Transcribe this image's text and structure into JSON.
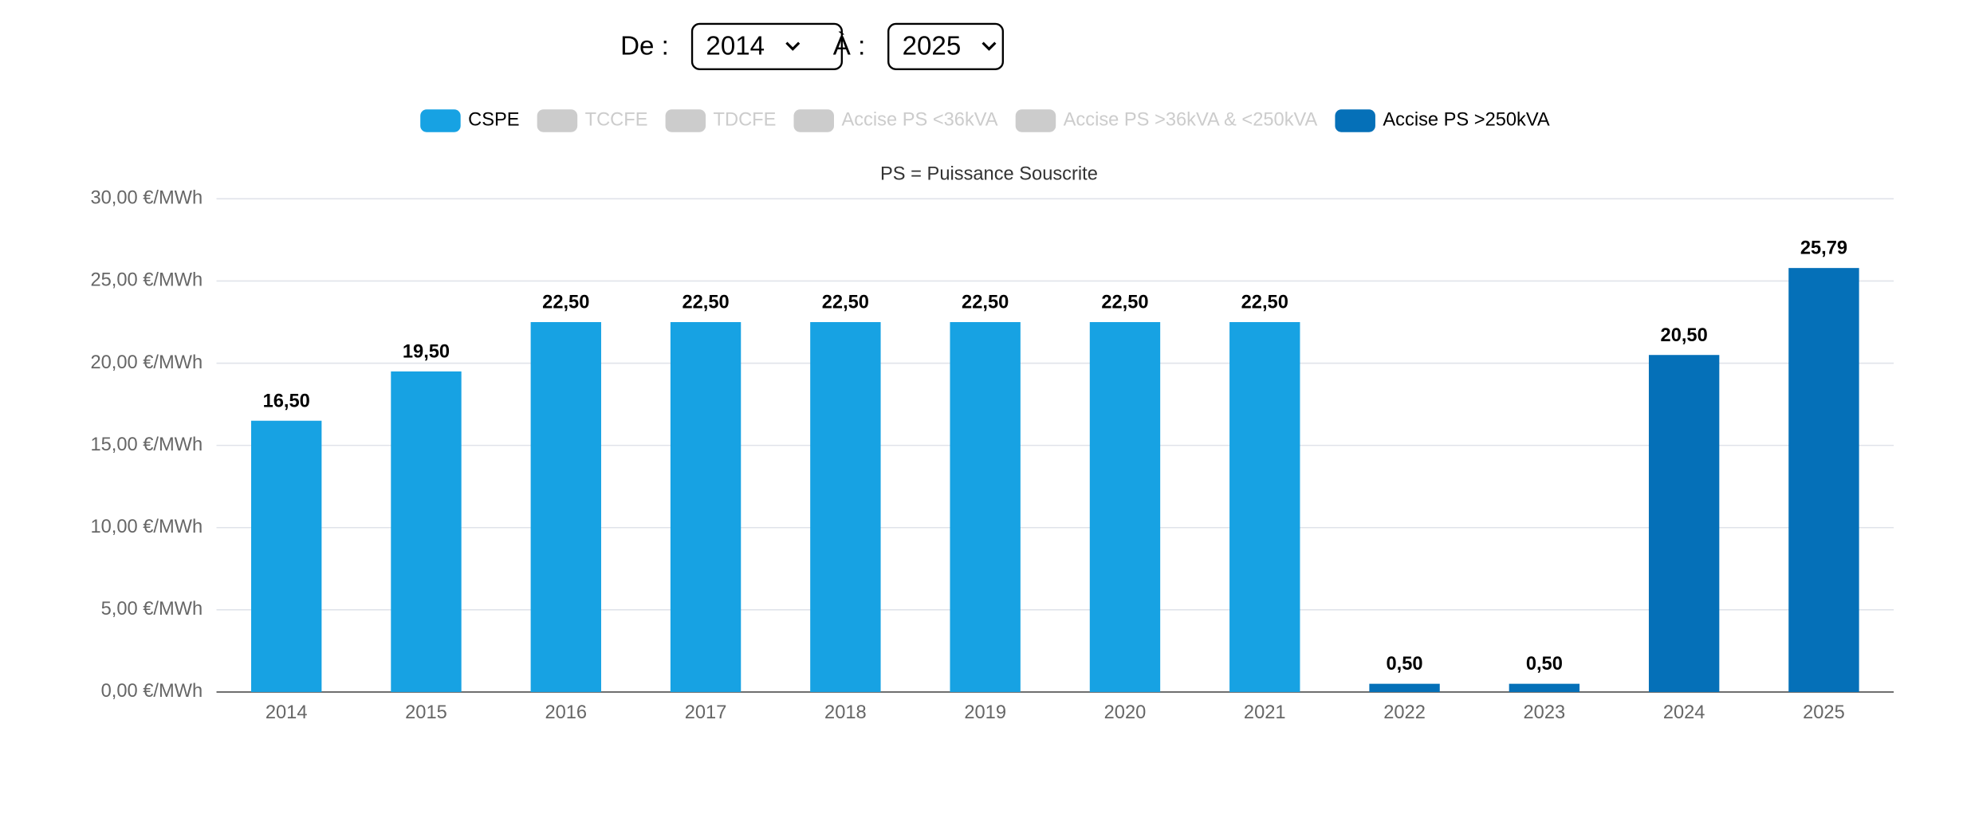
{
  "controls": {
    "from_label": "De :",
    "from_value": "2014",
    "to_label": "À :",
    "to_value": "2025"
  },
  "chart_data": {
    "type": "bar",
    "stacked": true,
    "subtitle": "PS = Puissance Souscrite",
    "categories": [
      "2014",
      "2015",
      "2016",
      "2017",
      "2018",
      "2019",
      "2020",
      "2021",
      "2022",
      "2023",
      "2024",
      "2025"
    ],
    "series": [
      {
        "name": "CSPE",
        "color": "#17a2e3",
        "hidden": false,
        "values": [
          16.5,
          19.5,
          22.5,
          22.5,
          22.5,
          22.5,
          22.5,
          22.5,
          null,
          null,
          null,
          null
        ],
        "value_labels": [
          "16,50",
          "19,50",
          "22,50",
          "22,50",
          "22,50",
          "22,50",
          "22,50",
          "22,50",
          null,
          null,
          null,
          null
        ]
      },
      {
        "name": "TCCFE",
        "hidden": true,
        "values": [
          null,
          null,
          null,
          null,
          null,
          null,
          null,
          null,
          null,
          null,
          null,
          null
        ]
      },
      {
        "name": "TDCFE",
        "hidden": true,
        "values": [
          null,
          null,
          null,
          null,
          null,
          null,
          null,
          null,
          null,
          null,
          null,
          null
        ]
      },
      {
        "name": "Accise PS <36kVA",
        "hidden": true,
        "values": [
          null,
          null,
          null,
          null,
          null,
          null,
          null,
          null,
          null,
          null,
          null,
          null
        ]
      },
      {
        "name": "Accise PS >36kVA & <250kVA",
        "hidden": true,
        "values": [
          null,
          null,
          null,
          null,
          null,
          null,
          null,
          null,
          null,
          null,
          null,
          null
        ]
      },
      {
        "name": "Accise PS >250kVA",
        "color": "#0570b8",
        "hidden": false,
        "values": [
          null,
          null,
          null,
          null,
          null,
          null,
          null,
          null,
          0.5,
          0.5,
          20.5,
          25.79
        ],
        "value_labels": [
          null,
          null,
          null,
          null,
          null,
          null,
          null,
          null,
          "0,50",
          "0,50",
          "20,50",
          "25,79"
        ]
      }
    ],
    "ylim": [
      0,
      30
    ],
    "yticks": [
      {
        "value": 0,
        "label": "0,00 €/MWh"
      },
      {
        "value": 5,
        "label": "5,00 €/MWh"
      },
      {
        "value": 10,
        "label": "10,00 €/MWh"
      },
      {
        "value": 15,
        "label": "15,00 €/MWh"
      },
      {
        "value": 20,
        "label": "20,00 €/MWh"
      },
      {
        "value": 25,
        "label": "25,00 €/MWh"
      },
      {
        "value": 30,
        "label": "30,00 €/MWh"
      }
    ],
    "grid": true,
    "legend": "top",
    "hidden_color": "#cccccc"
  }
}
